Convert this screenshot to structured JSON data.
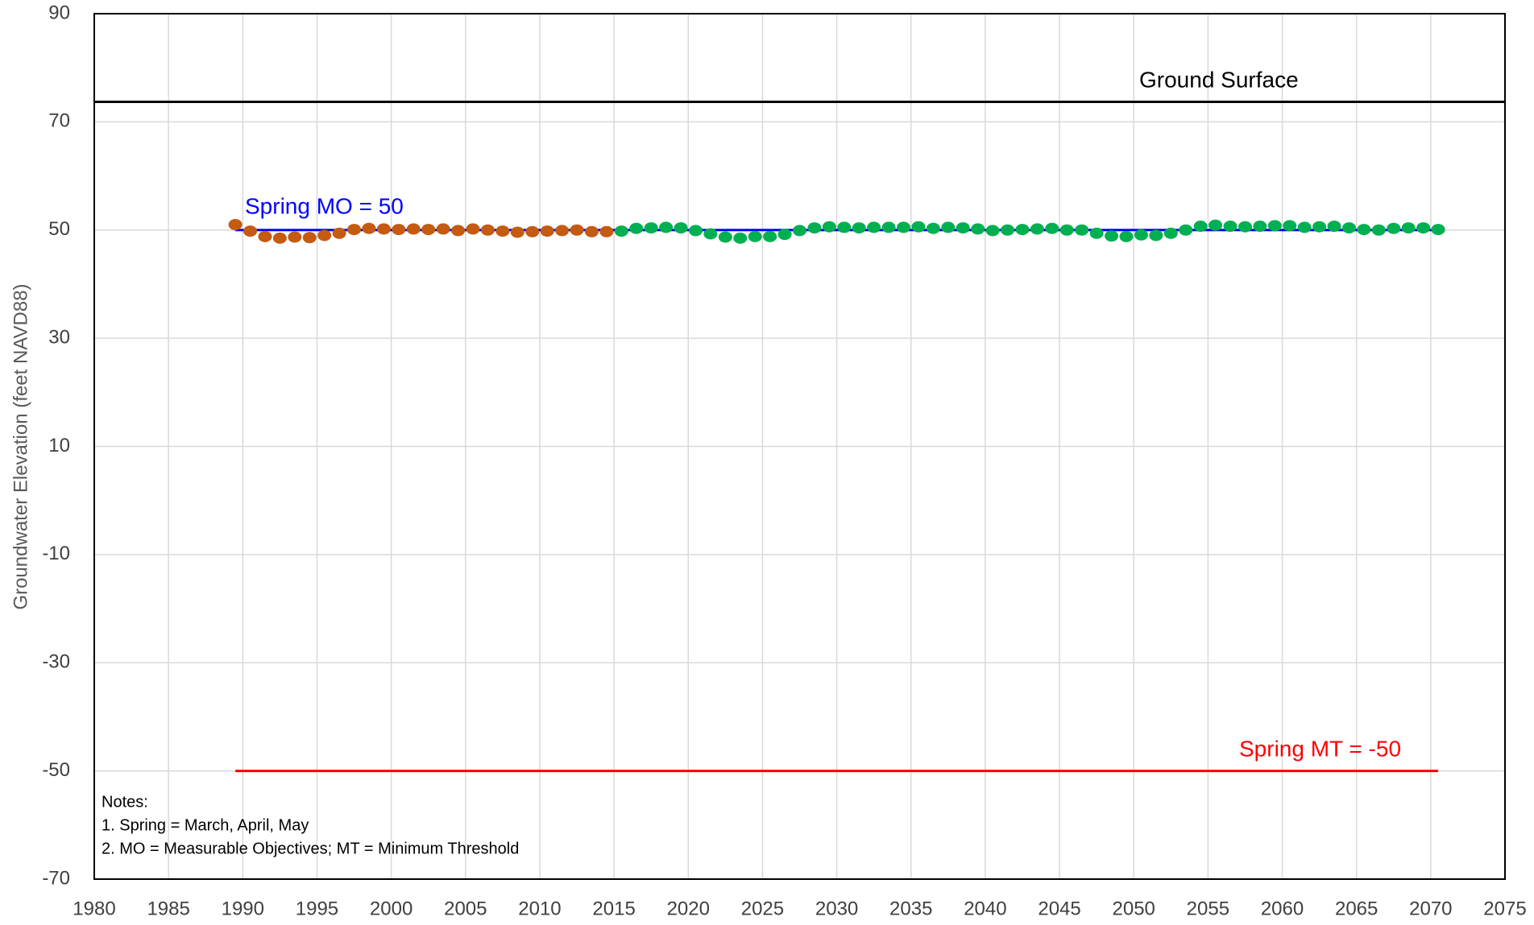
{
  "chart_data": {
    "type": "scatter",
    "y_label": "Groundwater Elevation (feet NAVD88)",
    "xlim": [
      1980,
      2075
    ],
    "xticks": [
      1980,
      1985,
      1990,
      1995,
      2000,
      2005,
      2010,
      2015,
      2020,
      2025,
      2030,
      2035,
      2040,
      2045,
      2050,
      2055,
      2060,
      2065,
      2070,
      2075
    ],
    "ylim": [
      -70,
      90
    ],
    "yticks": [
      -70,
      -50,
      -30,
      -10,
      10,
      30,
      50,
      70,
      90
    ],
    "grid": true,
    "series": [
      {
        "color": "#c55a11",
        "x": [
          1989.5,
          1990.5,
          1991.5,
          1992.5,
          1993.5,
          1994.5,
          1995.5,
          1996.5,
          1997.5,
          1998.5,
          1999.5,
          2000.5,
          2001.5,
          2002.5,
          2003.5,
          2004.5,
          2005.5,
          2006.5,
          2007.5,
          2008.5,
          2009.5,
          2010.5,
          2011.5,
          2012.5,
          2013.5,
          2014.5
        ],
        "values": [
          51,
          49.8,
          48.8,
          48.5,
          48.7,
          48.6,
          49,
          49.4,
          50.1,
          50.3,
          50.2,
          50.1,
          50.2,
          50.1,
          50.2,
          49.9,
          50.2,
          50,
          49.8,
          49.6,
          49.7,
          49.8,
          49.9,
          50,
          49.7,
          49.7
        ]
      },
      {
        "color": "#00b050",
        "x": [
          2015.5,
          2016.5,
          2017.5,
          2018.5,
          2019.5,
          2020.5,
          2021.5,
          2022.5,
          2023.5,
          2024.5,
          2025.5,
          2026.5,
          2027.5,
          2028.5,
          2029.5,
          2030.5,
          2031.5,
          2032.5,
          2033.5,
          2034.5,
          2035.5,
          2036.5,
          2037.5,
          2038.5,
          2039.5,
          2040.5,
          2041.5,
          2042.5,
          2043.5,
          2044.5,
          2045.5,
          2046.5,
          2047.5,
          2048.5,
          2049.5,
          2050.5,
          2051.5,
          2052.5,
          2053.5,
          2054.5,
          2055.5,
          2056.5,
          2057.5,
          2058.5,
          2059.5,
          2060.5,
          2061.5,
          2062.5,
          2063.5,
          2064.5,
          2065.5,
          2066.5,
          2067.5,
          2068.5,
          2069.5,
          2070.5
        ],
        "values": [
          49.8,
          50.3,
          50.4,
          50.5,
          50.4,
          49.9,
          49.3,
          48.7,
          48.5,
          48.8,
          48.8,
          49.2,
          49.9,
          50.4,
          50.6,
          50.5,
          50.4,
          50.5,
          50.5,
          50.5,
          50.6,
          50.3,
          50.5,
          50.4,
          50.2,
          49.9,
          50,
          50.1,
          50.2,
          50.3,
          50,
          50,
          49.4,
          48.9,
          48.8,
          49.1,
          49,
          49.4,
          50,
          50.7,
          50.9,
          50.7,
          50.6,
          50.7,
          50.8,
          50.8,
          50.5,
          50.6,
          50.7,
          50.4,
          50.1,
          50,
          50.3,
          50.4,
          50.4,
          50.1
        ]
      }
    ],
    "lines": [
      {
        "label": "Ground Surface",
        "value": 73.7,
        "color": "#000000",
        "x": [
          1980,
          2075
        ]
      },
      {
        "label": "Spring MO = 50",
        "value": 50,
        "color": "#0000ff",
        "x": [
          1989.5,
          2070.5
        ]
      },
      {
        "label": "Spring MT = -50",
        "value": -50,
        "color": "#ff0000",
        "x": [
          1989.5,
          2070.5
        ]
      }
    ],
    "notes": [
      "Notes:",
      "1. Spring = March, April, May",
      "2. MO = Measurable Objectives;  MT = Minimum Threshold"
    ]
  }
}
